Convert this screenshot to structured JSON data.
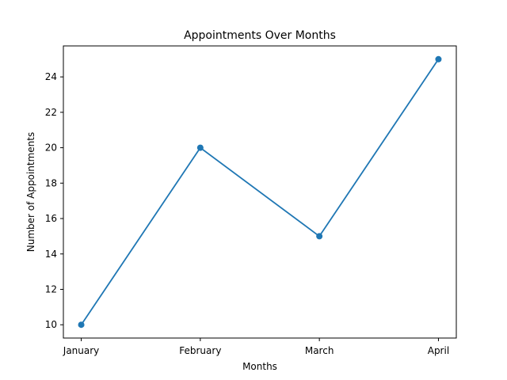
{
  "chart_data": {
    "type": "line",
    "title": "Appointments Over Months",
    "xlabel": "Months",
    "ylabel": "Number of Appointments",
    "categories": [
      "January",
      "February",
      "March",
      "April"
    ],
    "series": [
      {
        "values": [
          10,
          20,
          15,
          25
        ],
        "color": "#1f77b4",
        "marker": "circle"
      }
    ],
    "yticks": [
      10,
      12,
      14,
      16,
      18,
      20,
      22,
      24
    ],
    "ylim": [
      9.25,
      25.75
    ],
    "grid": false,
    "legend": "none"
  }
}
